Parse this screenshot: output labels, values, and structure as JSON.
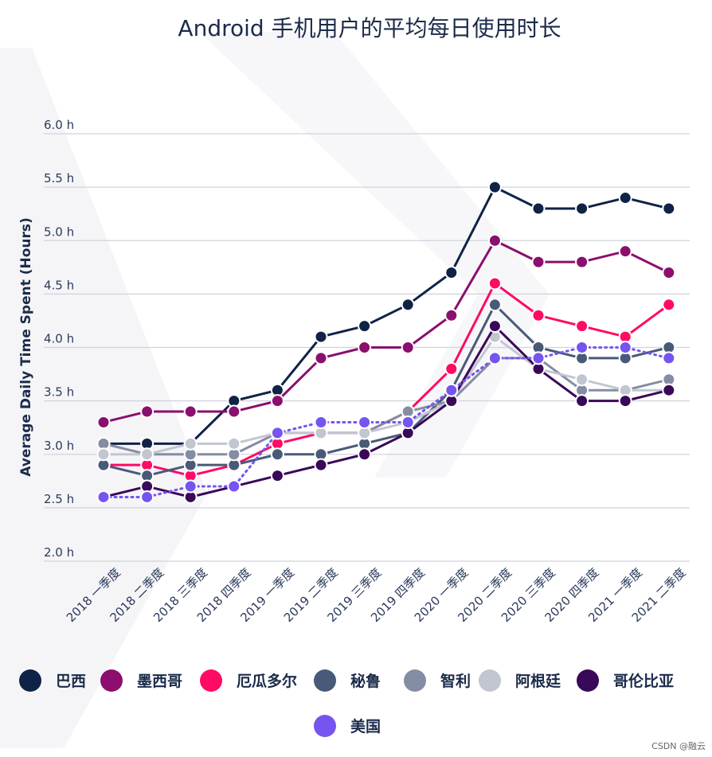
{
  "chart_data": {
    "type": "line",
    "title": "Android 手机用户的平均每日使用时长",
    "ylabel": "Average Daily Time Spent (Hours)",
    "xlabel": "",
    "ylim": [
      2.0,
      6.0
    ],
    "grid": true,
    "legend_position": "bottom",
    "y_ticks": [
      "2.0 h",
      "2.5 h",
      "3.0 h",
      "3.5 h",
      "4.0 h",
      "4.5 h",
      "5.0 h",
      "5.5 h",
      "6.0 h"
    ],
    "y_tick_values": [
      2.0,
      2.5,
      3.0,
      3.5,
      4.0,
      4.5,
      5.0,
      5.5,
      6.0
    ],
    "categories": [
      "2018 一季度",
      "2018 二季度",
      "2018 三季度",
      "2018 四季度",
      "2019 一季度",
      "2019 二季度",
      "2019 三季度",
      "2019 四季度",
      "2020 一季度",
      "2020 二季度",
      "2020 三季度",
      "2020 四季度",
      "2021 一季度",
      "2021 二季度"
    ],
    "series": [
      {
        "name": "巴西",
        "color": "#0f2346",
        "dotted": false,
        "values": [
          3.1,
          3.1,
          3.1,
          3.5,
          3.6,
          4.1,
          4.2,
          4.4,
          4.7,
          5.5,
          5.3,
          5.3,
          5.4,
          5.3
        ]
      },
      {
        "name": "墨西哥",
        "color": "#8a0f6e",
        "dotted": false,
        "values": [
          3.3,
          3.4,
          3.4,
          3.4,
          3.5,
          3.9,
          4.0,
          4.0,
          4.3,
          5.0,
          4.8,
          4.8,
          4.9,
          4.7
        ]
      },
      {
        "name": "厄瓜多尔",
        "color": "#ff0a64",
        "dotted": false,
        "values": [
          2.9,
          2.9,
          2.8,
          2.9,
          3.1,
          3.2,
          3.2,
          3.4,
          3.8,
          4.6,
          4.3,
          4.2,
          4.1,
          4.4
        ]
      },
      {
        "name": "秘鲁",
        "color": "#495a78",
        "dotted": false,
        "values": [
          2.9,
          2.8,
          2.9,
          2.9,
          3.0,
          3.0,
          3.1,
          3.2,
          3.6,
          4.4,
          4.0,
          3.9,
          3.9,
          4.0
        ]
      },
      {
        "name": "智利",
        "color": "#848da3",
        "dotted": false,
        "values": [
          3.1,
          3.0,
          3.0,
          3.0,
          3.2,
          3.2,
          3.2,
          3.4,
          3.5,
          3.9,
          3.9,
          3.6,
          3.6,
          3.7
        ]
      },
      {
        "name": "阿根廷",
        "color": "#c2c6d1",
        "dotted": false,
        "values": [
          3.0,
          3.0,
          3.1,
          3.1,
          3.2,
          3.2,
          3.2,
          3.3,
          3.5,
          4.1,
          3.8,
          3.7,
          3.6,
          3.6
        ]
      },
      {
        "name": "哥伦比亚",
        "color": "#3a0858",
        "dotted": false,
        "values": [
          2.6,
          2.7,
          2.6,
          2.7,
          2.8,
          2.9,
          3.0,
          3.2,
          3.5,
          4.2,
          3.8,
          3.5,
          3.5,
          3.6
        ]
      },
      {
        "name": "美国",
        "color": "#7554f0",
        "dotted": true,
        "values": [
          2.6,
          2.6,
          2.7,
          2.7,
          3.2,
          3.3,
          3.3,
          3.3,
          3.6,
          3.9,
          3.9,
          4.0,
          4.0,
          3.9
        ]
      }
    ]
  },
  "watermark": "CSDN @融云"
}
